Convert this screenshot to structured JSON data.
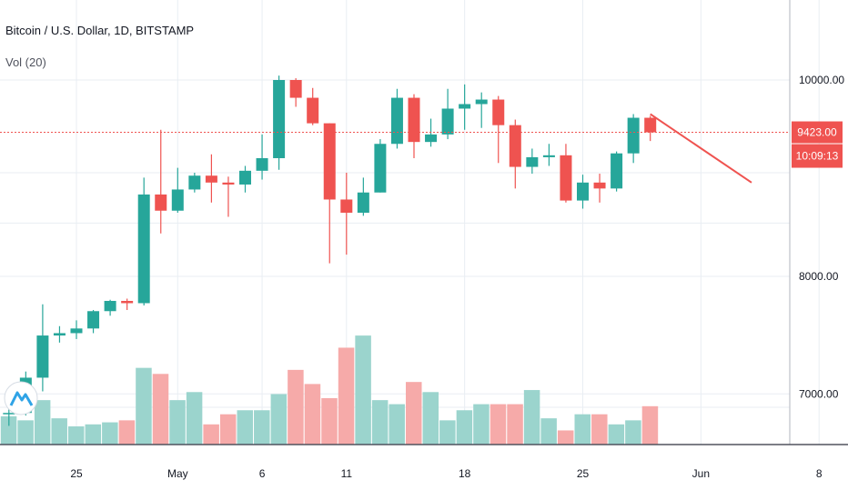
{
  "header": {
    "title": "Bitcoin / U.S. Dollar, 1D, BITSTAMP",
    "volume_label": "Vol (20)"
  },
  "price_tag": {
    "price": "9423.00",
    "countdown": "10:09:13"
  },
  "chart_data": {
    "type": "candlestick",
    "symbol": "Bitcoin / U.S. Dollar",
    "interval": "1D",
    "exchange": "BITSTAMP",
    "y_ticks": [
      7000,
      8000,
      10000
    ],
    "y_tick_labels": [
      "7000.00",
      "8000.00",
      "10000.00"
    ],
    "y_scale": "log",
    "x_tick_labels": [
      {
        "label": "25",
        "day": "2020-04-25"
      },
      {
        "label": "May",
        "day": "2020-05-01"
      },
      {
        "label": "6",
        "day": "2020-05-06"
      },
      {
        "label": "11",
        "day": "2020-05-11"
      },
      {
        "label": "18",
        "day": "2020-05-18"
      },
      {
        "label": "25",
        "day": "2020-05-25"
      },
      {
        "label": "Jun",
        "day": "2020-06-01"
      },
      {
        "label": "8",
        "day": "2020-06-08"
      }
    ],
    "candles": [
      {
        "date": "2020-04-21",
        "o": 6840,
        "h": 6880,
        "l": 6750,
        "c": 6850
      },
      {
        "date": "2020-04-22",
        "o": 6850,
        "h": 7180,
        "l": 6830,
        "c": 7130
      },
      {
        "date": "2020-04-23",
        "o": 7130,
        "h": 7750,
        "l": 7020,
        "c": 7480
      },
      {
        "date": "2020-04-24",
        "o": 7480,
        "h": 7560,
        "l": 7420,
        "c": 7500
      },
      {
        "date": "2020-04-25",
        "o": 7500,
        "h": 7610,
        "l": 7450,
        "c": 7540
      },
      {
        "date": "2020-04-26",
        "o": 7540,
        "h": 7700,
        "l": 7500,
        "c": 7690
      },
      {
        "date": "2020-04-27",
        "o": 7690,
        "h": 7790,
        "l": 7650,
        "c": 7780
      },
      {
        "date": "2020-04-28",
        "o": 7780,
        "h": 7800,
        "l": 7700,
        "c": 7760
      },
      {
        "date": "2020-04-29",
        "o": 7760,
        "h": 8950,
        "l": 7740,
        "c": 8780
      },
      {
        "date": "2020-04-30",
        "o": 8780,
        "h": 9450,
        "l": 8400,
        "c": 8620
      },
      {
        "date": "2020-05-01",
        "o": 8620,
        "h": 9050,
        "l": 8600,
        "c": 8830
      },
      {
        "date": "2020-05-02",
        "o": 8830,
        "h": 9000,
        "l": 8800,
        "c": 8970
      },
      {
        "date": "2020-05-03",
        "o": 8970,
        "h": 9190,
        "l": 8700,
        "c": 8900
      },
      {
        "date": "2020-05-04",
        "o": 8900,
        "h": 8960,
        "l": 8560,
        "c": 8880
      },
      {
        "date": "2020-05-05",
        "o": 8880,
        "h": 9070,
        "l": 8800,
        "c": 9020
      },
      {
        "date": "2020-05-06",
        "o": 9020,
        "h": 9400,
        "l": 8930,
        "c": 9150
      },
      {
        "date": "2020-05-07",
        "o": 9150,
        "h": 10050,
        "l": 9030,
        "c": 10000
      },
      {
        "date": "2020-05-08",
        "o": 10000,
        "h": 10020,
        "l": 9700,
        "c": 9800
      },
      {
        "date": "2020-05-09",
        "o": 9800,
        "h": 9910,
        "l": 9500,
        "c": 9520
      },
      {
        "date": "2020-05-10",
        "o": 9520,
        "h": 9520,
        "l": 8120,
        "c": 8730
      },
      {
        "date": "2020-05-11",
        "o": 8730,
        "h": 9000,
        "l": 8200,
        "c": 8600
      },
      {
        "date": "2020-05-12",
        "o": 8600,
        "h": 8950,
        "l": 8570,
        "c": 8800
      },
      {
        "date": "2020-05-13",
        "o": 8800,
        "h": 9350,
        "l": 8800,
        "c": 9300
      },
      {
        "date": "2020-05-14",
        "o": 9300,
        "h": 9900,
        "l": 9250,
        "c": 9800
      },
      {
        "date": "2020-05-15",
        "o": 9800,
        "h": 9840,
        "l": 9150,
        "c": 9320
      },
      {
        "date": "2020-05-16",
        "o": 9320,
        "h": 9570,
        "l": 9270,
        "c": 9400
      },
      {
        "date": "2020-05-17",
        "o": 9400,
        "h": 9900,
        "l": 9350,
        "c": 9680
      },
      {
        "date": "2020-05-18",
        "o": 9680,
        "h": 9950,
        "l": 9450,
        "c": 9730
      },
      {
        "date": "2020-05-19",
        "o": 9730,
        "h": 9860,
        "l": 9470,
        "c": 9780
      },
      {
        "date": "2020-05-20",
        "o": 9780,
        "h": 9820,
        "l": 9100,
        "c": 9500
      },
      {
        "date": "2020-05-21",
        "o": 9500,
        "h": 9560,
        "l": 8840,
        "c": 9060
      },
      {
        "date": "2020-05-22",
        "o": 9060,
        "h": 9250,
        "l": 8990,
        "c": 9160
      },
      {
        "date": "2020-05-23",
        "o": 9160,
        "h": 9300,
        "l": 9070,
        "c": 9180
      },
      {
        "date": "2020-05-24",
        "o": 9180,
        "h": 9300,
        "l": 8700,
        "c": 8720
      },
      {
        "date": "2020-05-25",
        "o": 8720,
        "h": 8980,
        "l": 8640,
        "c": 8900
      },
      {
        "date": "2020-05-26",
        "o": 8900,
        "h": 8990,
        "l": 8700,
        "c": 8840
      },
      {
        "date": "2020-05-27",
        "o": 8840,
        "h": 9220,
        "l": 8810,
        "c": 9200
      },
      {
        "date": "2020-05-28",
        "o": 9200,
        "h": 9620,
        "l": 9100,
        "c": 9580
      },
      {
        "date": "2020-05-29",
        "o": 9580,
        "h": 9600,
        "l": 9330,
        "c": 9423
      }
    ],
    "volumes": [
      {
        "date": "2020-04-21",
        "v": 14
      },
      {
        "date": "2020-04-22",
        "v": 12
      },
      {
        "date": "2020-04-23",
        "v": 22
      },
      {
        "date": "2020-04-24",
        "v": 13
      },
      {
        "date": "2020-04-25",
        "v": 9
      },
      {
        "date": "2020-04-26",
        "v": 10
      },
      {
        "date": "2020-04-27",
        "v": 11
      },
      {
        "date": "2020-04-28",
        "v": 12
      },
      {
        "date": "2020-04-29",
        "v": 38
      },
      {
        "date": "2020-04-30",
        "v": 35
      },
      {
        "date": "2020-05-01",
        "v": 22
      },
      {
        "date": "2020-05-02",
        "v": 26
      },
      {
        "date": "2020-05-03",
        "v": 10
      },
      {
        "date": "2020-05-04",
        "v": 15
      },
      {
        "date": "2020-05-05",
        "v": 17
      },
      {
        "date": "2020-05-06",
        "v": 17
      },
      {
        "date": "2020-05-07",
        "v": 25
      },
      {
        "date": "2020-05-08",
        "v": 37
      },
      {
        "date": "2020-05-09",
        "v": 30
      },
      {
        "date": "2020-05-10",
        "v": 23
      },
      {
        "date": "2020-05-11",
        "v": 48
      },
      {
        "date": "2020-05-12",
        "v": 54
      },
      {
        "date": "2020-05-13",
        "v": 22
      },
      {
        "date": "2020-05-14",
        "v": 20
      },
      {
        "date": "2020-05-15",
        "v": 31
      },
      {
        "date": "2020-05-16",
        "v": 26
      },
      {
        "date": "2020-05-17",
        "v": 12
      },
      {
        "date": "2020-05-18",
        "v": 17
      },
      {
        "date": "2020-05-19",
        "v": 20
      },
      {
        "date": "2020-05-20",
        "v": 20
      },
      {
        "date": "2020-05-21",
        "v": 20
      },
      {
        "date": "2020-05-22",
        "v": 27
      },
      {
        "date": "2020-05-23",
        "v": 13
      },
      {
        "date": "2020-05-24",
        "v": 7
      },
      {
        "date": "2020-05-25",
        "v": 15
      },
      {
        "date": "2020-05-26",
        "v": 15
      },
      {
        "date": "2020-05-27",
        "v": 10
      },
      {
        "date": "2020-05-28",
        "v": 12
      },
      {
        "date": "2020-05-29",
        "v": 19
      }
    ],
    "trend_line": {
      "from": {
        "date": "2020-05-29",
        "price": 9620
      },
      "to": {
        "date": "2020-06-04",
        "price": 8900
      }
    },
    "colors": {
      "up": "#26a69a",
      "down": "#ef5350",
      "vol_up": "#9bd4cd",
      "vol_down": "#f6aaa9",
      "grid": "#e9eef3",
      "price_line": "#ef5350"
    },
    "grid": true
  }
}
